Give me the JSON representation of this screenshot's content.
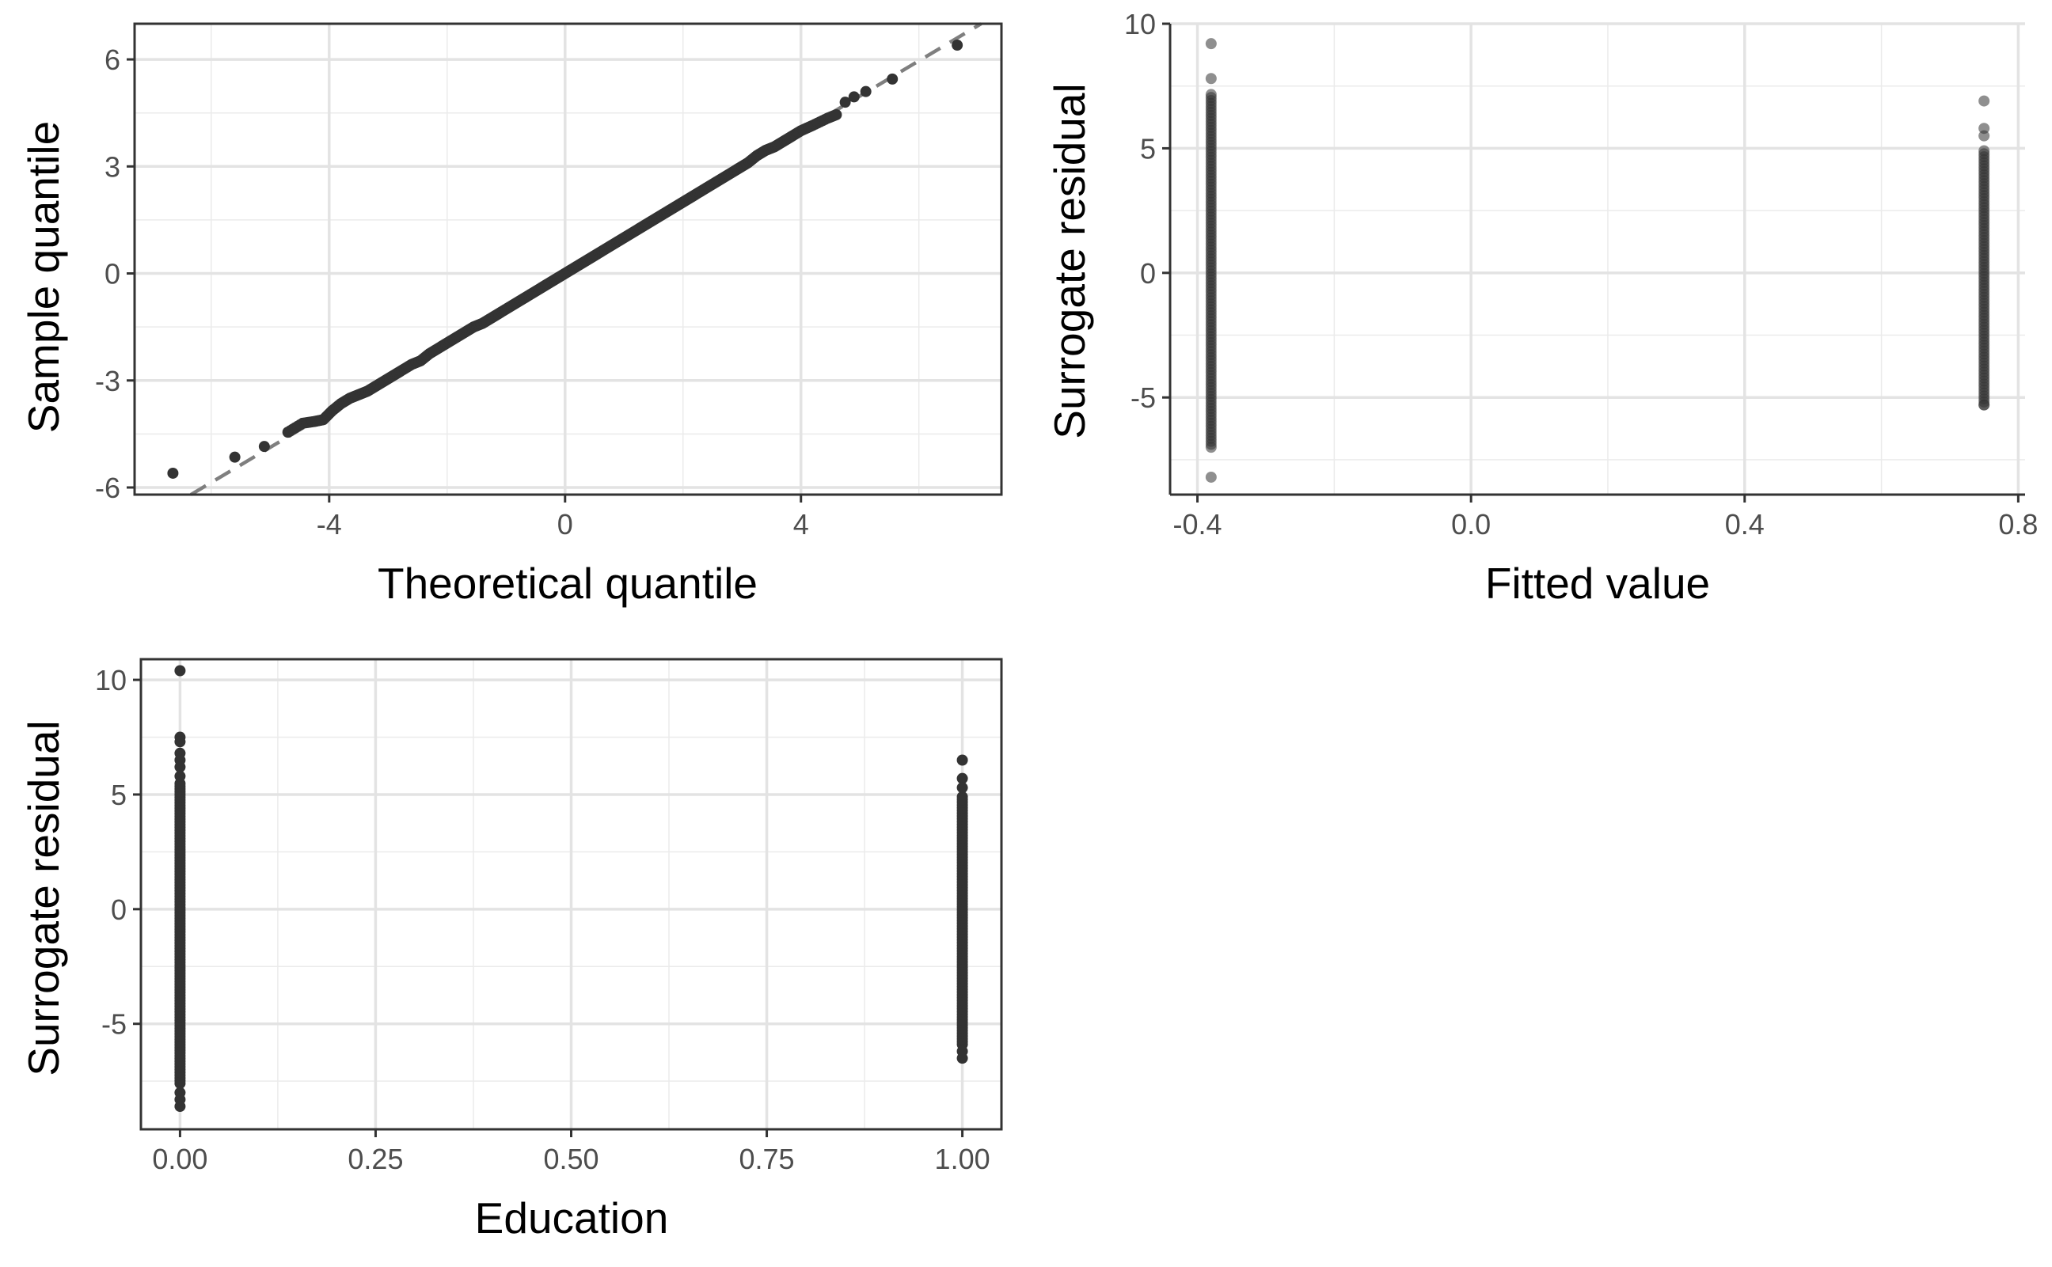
{
  "chart_data": [
    {
      "type": "scatter",
      "title": "",
      "xlabel": "Theoretical quantile",
      "ylabel": "Sample quantile",
      "xlim": [
        -7.3,
        7.4
      ],
      "ylim": [
        -6.2,
        7.0
      ],
      "x_ticks": [
        -4,
        0,
        4
      ],
      "x_tick_labels": [
        "-4",
        "0",
        "4"
      ],
      "y_ticks": [
        -6,
        -3,
        0,
        3,
        6
      ],
      "y_tick_labels": [
        "-6",
        "-3",
        "0",
        "3",
        "6"
      ],
      "grid": true,
      "point_color": "#333333",
      "reference_line": {
        "style": "dashed",
        "color": "#7f7f7f",
        "slope": 0.985,
        "intercept": 0.05
      },
      "points": {
        "x": [
          -6.65,
          -5.6,
          -5.1,
          -4.7,
          -4.45,
          -4.25,
          -4.1,
          -3.95,
          -3.8,
          -3.65,
          -3.5,
          -3.35,
          -3.2,
          -3.05,
          -2.9,
          -2.75,
          -2.6,
          -2.45,
          -2.3,
          -2.15,
          -2.0,
          -1.85,
          -1.7,
          -1.55,
          -1.4,
          -1.25,
          -1.1,
          -0.95,
          -0.8,
          -0.65,
          -0.5,
          -0.35,
          -0.2,
          -0.05,
          0.1,
          0.25,
          0.4,
          0.55,
          0.7,
          0.85,
          1.0,
          1.15,
          1.3,
          1.45,
          1.6,
          1.75,
          1.9,
          2.05,
          2.2,
          2.35,
          2.5,
          2.65,
          2.8,
          2.95,
          3.1,
          3.25,
          3.4,
          3.55,
          3.7,
          3.85,
          4.0,
          4.2,
          4.45,
          4.6,
          4.75,
          4.9,
          5.1,
          5.55,
          6.65
        ],
        "y": [
          -5.6,
          -5.15,
          -4.85,
          -4.45,
          -4.2,
          -4.15,
          -4.1,
          -3.85,
          -3.65,
          -3.5,
          -3.4,
          -3.3,
          -3.15,
          -3.0,
          -2.85,
          -2.7,
          -2.55,
          -2.45,
          -2.25,
          -2.1,
          -1.95,
          -1.8,
          -1.65,
          -1.5,
          -1.4,
          -1.25,
          -1.1,
          -0.95,
          -0.8,
          -0.65,
          -0.5,
          -0.35,
          -0.2,
          -0.05,
          0.1,
          0.25,
          0.4,
          0.55,
          0.7,
          0.85,
          1.0,
          1.15,
          1.3,
          1.45,
          1.6,
          1.75,
          1.9,
          2.05,
          2.2,
          2.35,
          2.5,
          2.65,
          2.8,
          2.95,
          3.1,
          3.3,
          3.45,
          3.55,
          3.7,
          3.85,
          4.0,
          4.15,
          4.35,
          4.45,
          4.8,
          4.95,
          5.1,
          5.45,
          6.4
        ]
      }
    },
    {
      "type": "scatter",
      "title": "",
      "xlabel": "Fitted value",
      "ylabel": "Surrogate residual",
      "xlim": [
        -0.44,
        0.81
      ],
      "ylim": [
        -8.9,
        10.0
      ],
      "x_ticks": [
        -0.4,
        0.0,
        0.4,
        0.8
      ],
      "x_tick_labels": [
        "-0.4",
        "0.0",
        "0.4",
        "0.8"
      ],
      "y_ticks": [
        -5,
        0,
        5,
        10
      ],
      "y_tick_labels": [
        "-5",
        "0",
        "5",
        "10"
      ],
      "grid": true,
      "point_color": "#333333",
      "point_opacity": 0.55,
      "columns": [
        {
          "x": -0.38,
          "y_min": -7.0,
          "y_max": 7.2,
          "outliers": [
            9.2,
            7.8,
            -8.2
          ]
        },
        {
          "x": 0.75,
          "y_min": -5.3,
          "y_max": 5.0,
          "outliers": [
            6.9,
            5.8,
            5.5,
            -5.3
          ]
        }
      ]
    },
    {
      "type": "scatter",
      "title": "",
      "xlabel": "Education",
      "ylabel": "Surrogate residual",
      "xlim": [
        -0.05,
        1.05
      ],
      "ylim": [
        -9.6,
        10.9
      ],
      "x_ticks": [
        0.0,
        0.25,
        0.5,
        0.75,
        1.0
      ],
      "x_tick_labels": [
        "0.00",
        "0.25",
        "0.50",
        "0.75",
        "1.00"
      ],
      "y_ticks": [
        -5,
        0,
        5,
        10
      ],
      "y_tick_labels": [
        "-5",
        "0",
        "5",
        "10"
      ],
      "grid": true,
      "point_color": "#333333",
      "columns": [
        {
          "x": 0.0,
          "y_min": -7.6,
          "y_max": 5.5,
          "outliers": [
            10.4,
            7.5,
            7.3,
            6.8,
            6.5,
            6.2,
            5.8,
            -8.0,
            -8.3,
            -8.6
          ]
        },
        {
          "x": 1.0,
          "y_min": -5.9,
          "y_max": 4.9,
          "outliers": [
            6.5,
            5.7,
            5.3,
            -6.2,
            -6.5
          ]
        }
      ]
    }
  ]
}
